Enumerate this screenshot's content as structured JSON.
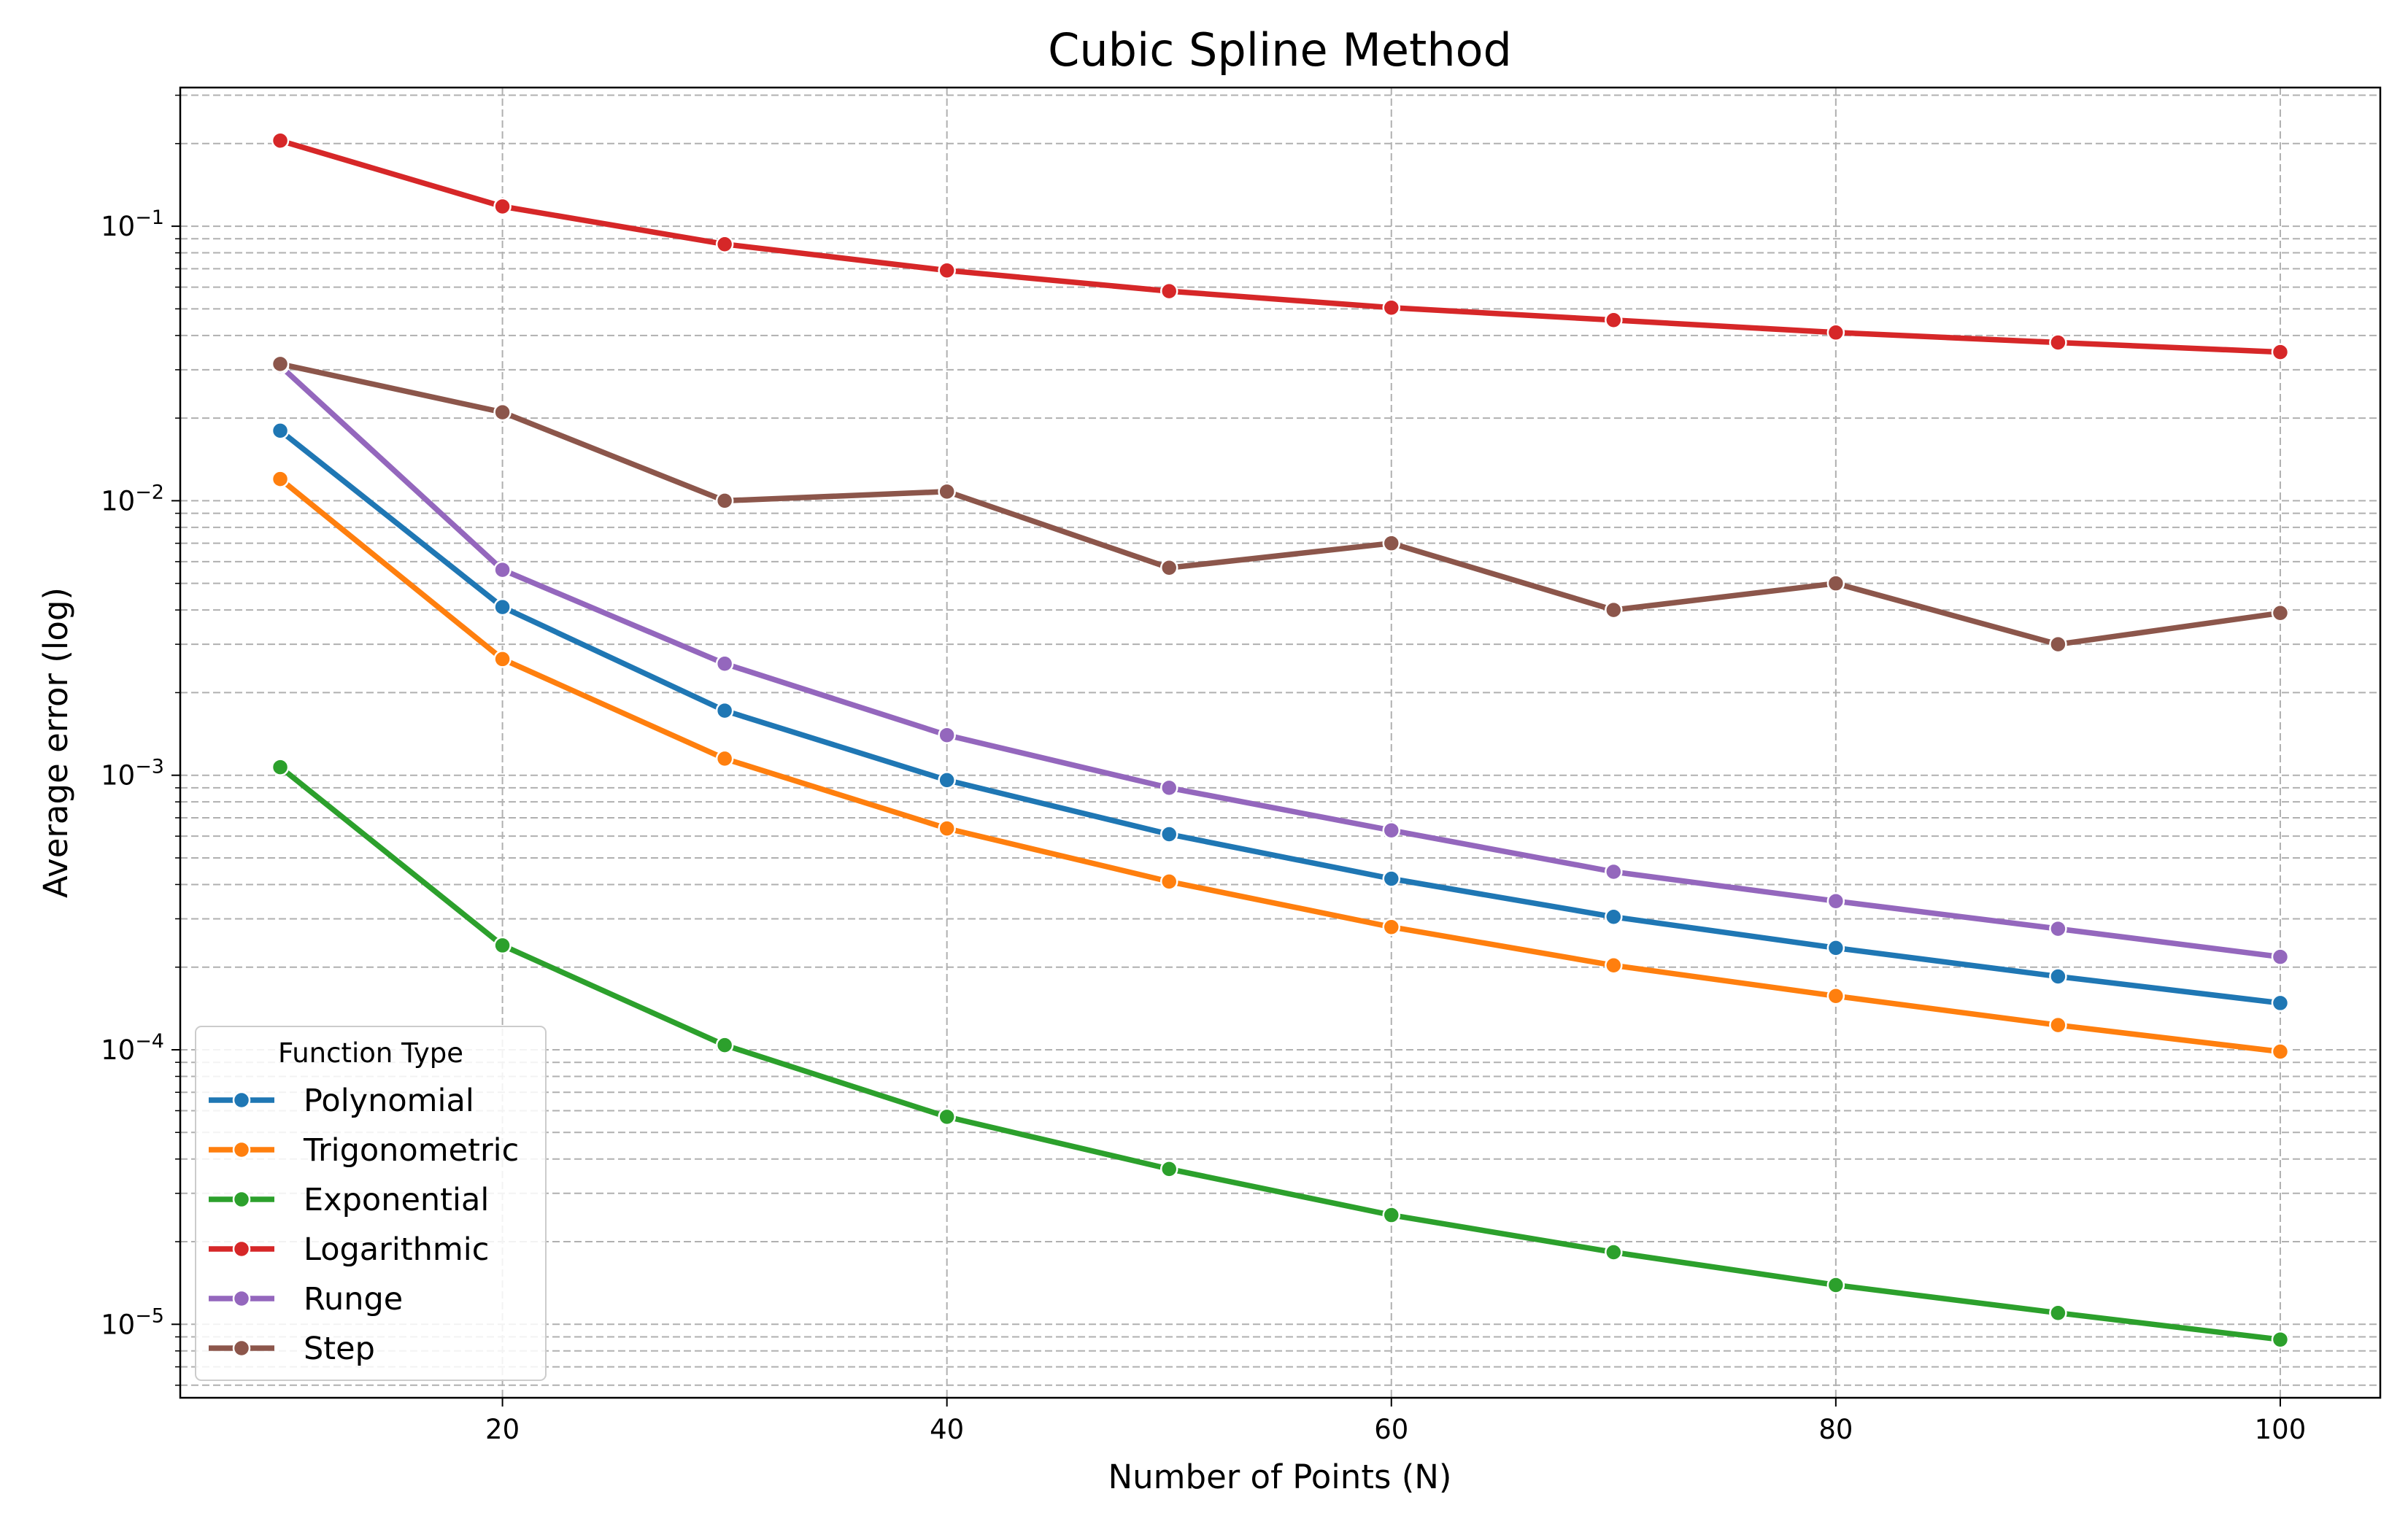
{
  "chart_data": {
    "type": "line",
    "title": "Cubic Spline Method",
    "xlabel": "Number of Points (N)",
    "ylabel": "Average error (log)",
    "yscale": "log",
    "xlim": [
      5.5,
      104.5
    ],
    "ylim": [
      5.4e-06,
      0.32
    ],
    "grid": true,
    "legend_title": "Function Type",
    "legend_position": "lower-left",
    "x_tick_labels": [
      "20",
      "40",
      "60",
      "80",
      "100"
    ],
    "x": [
      10,
      20,
      30,
      40,
      50,
      60,
      70,
      80,
      90,
      100
    ],
    "series": [
      {
        "name": "Polynomial",
        "color": "#1f77b4",
        "values": [
          0.018,
          0.0041,
          0.00172,
          0.00096,
          0.00061,
          0.00042,
          0.000305,
          0.000235,
          0.000185,
          0.000148
        ]
      },
      {
        "name": "Trigonometric",
        "color": "#ff7f0e",
        "values": [
          0.012,
          0.00265,
          0.00115,
          0.00064,
          0.00041,
          0.00028,
          0.000203,
          0.000157,
          0.000123,
          9.85e-05
        ]
      },
      {
        "name": "Exponential",
        "color": "#2ca02c",
        "values": [
          0.00107,
          0.00024,
          0.000104,
          5.7e-05,
          3.68e-05,
          2.5e-05,
          1.83e-05,
          1.39e-05,
          1.1e-05,
          8.8e-06
        ]
      },
      {
        "name": "Logarithmic",
        "color": "#d62728",
        "values": [
          0.205,
          0.118,
          0.086,
          0.069,
          0.058,
          0.0505,
          0.0455,
          0.041,
          0.0377,
          0.0348
        ]
      },
      {
        "name": "Runge",
        "color": "#9467bd",
        "values": [
          0.031,
          0.0056,
          0.00255,
          0.0014,
          0.0009,
          0.00063,
          0.000445,
          0.000348,
          0.000276,
          0.000218
        ]
      },
      {
        "name": "Step",
        "color": "#8c564b",
        "values": [
          0.0315,
          0.021,
          0.01,
          0.0108,
          0.0057,
          0.007,
          0.004,
          0.005,
          0.003,
          0.0039
        ]
      }
    ]
  }
}
